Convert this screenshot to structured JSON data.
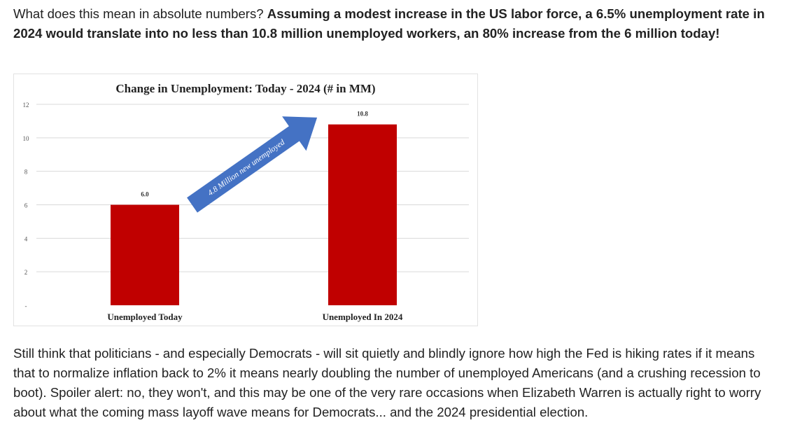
{
  "article": {
    "para1_plain": "What does this mean in absolute numbers? ",
    "para1_bold": "Assuming a modest increase in the US labor force, a 6.5% unemployment rate in 2024 would translate into no less than 10.8 million unemployed workers, an 80% increase from the 6 million today!",
    "para2": "Still think that politicians - and especially Democrats - will sit quietly and blindly ignore how high the Fed is hiking rates if it means that to normalize inflation back to 2% it means nearly doubling the number of unemployed Americans (and a crushing recession to boot). Spoiler alert: no, they won't, and this may be one of the very rare occasions when Elizabeth Warren is actually right to worry about what the coming mass layoff wave means for Democrats... and the 2024 presidential election."
  },
  "chart_data": {
    "type": "bar",
    "title": "Change in Unemployment: Today - 2024 (# in MM)",
    "categories": [
      "Unemployed Today",
      "Unemployed In 2024"
    ],
    "values": [
      6.0,
      10.8
    ],
    "data_labels": [
      "6.0",
      "10.8"
    ],
    "ylim": [
      0,
      12
    ],
    "yticks": [
      0,
      2,
      4,
      6,
      8,
      10,
      12
    ],
    "ytick_labels": [
      "-",
      "2",
      "4",
      "6",
      "8",
      "10",
      "12"
    ],
    "grid": true,
    "annotation": "4.8 Million new unemployed",
    "colors": {
      "bar": "#c00000",
      "arrow": "#4472c4",
      "grid": "#d9d9d9"
    }
  }
}
